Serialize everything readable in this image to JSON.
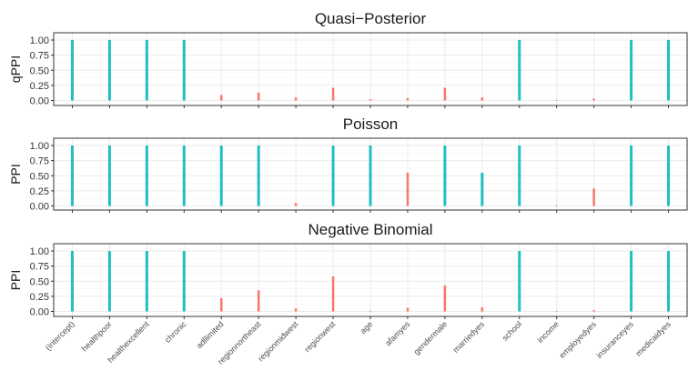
{
  "colors": {
    "included": "#1fbfc4",
    "excluded": "#f8766d",
    "grid": "#ebebeb",
    "frame": "#333333"
  },
  "chart_data": [
    {
      "type": "bar",
      "title": "Quasi−Posterior",
      "ylabel": "qPPI",
      "ylim": [
        0,
        1.08
      ],
      "yticks": [
        "0.00",
        "0.25",
        "0.50",
        "0.75",
        "1.00"
      ],
      "categories": [
        "(Intercept)",
        "healthpoor",
        "healthexcellent",
        "chronic",
        "adllimited",
        "regionnortheast",
        "regionmidwest",
        "regionwest",
        "age",
        "afamyes",
        "gendermale",
        "marriedyes",
        "school",
        "income",
        "employedyes",
        "insuranceyes",
        "medicaidyes"
      ],
      "values": [
        1.0,
        1.0,
        1.0,
        1.0,
        0.09,
        0.13,
        0.05,
        0.21,
        0.02,
        0.04,
        0.21,
        0.05,
        1.0,
        0.0,
        0.03,
        1.0,
        1.0
      ],
      "included": [
        true,
        true,
        true,
        true,
        false,
        false,
        false,
        false,
        false,
        false,
        false,
        false,
        true,
        false,
        false,
        true,
        true
      ]
    },
    {
      "type": "bar",
      "title": "Poisson",
      "ylabel": "PPI",
      "ylim": [
        0,
        1.08
      ],
      "yticks": [
        "0.00",
        "0.25",
        "0.50",
        "0.75",
        "1.00"
      ],
      "categories": [
        "(Intercept)",
        "healthpoor",
        "healthexcellent",
        "chronic",
        "adllimited",
        "regionnortheast",
        "regionmidwest",
        "regionwest",
        "age",
        "afamyes",
        "gendermale",
        "marriedyes",
        "school",
        "income",
        "employedyes",
        "insuranceyes",
        "medicaidyes"
      ],
      "values": [
        1.0,
        1.0,
        1.0,
        1.0,
        1.0,
        1.0,
        0.05,
        1.0,
        1.0,
        0.55,
        1.0,
        0.55,
        1.0,
        0.01,
        0.29,
        1.0,
        1.0
      ],
      "included": [
        true,
        true,
        true,
        true,
        true,
        true,
        false,
        true,
        true,
        false,
        true,
        true,
        true,
        false,
        false,
        true,
        true
      ]
    },
    {
      "type": "bar",
      "title": "Negative Binomial",
      "ylabel": "PPI",
      "ylim": [
        0,
        1.08
      ],
      "yticks": [
        "0.00",
        "0.25",
        "0.50",
        "0.75",
        "1.00"
      ],
      "categories": [
        "(Intercept)",
        "healthpoor",
        "healthexcellent",
        "chronic",
        "adllimited",
        "regionnortheast",
        "regionmidwest",
        "regionwest",
        "age",
        "afamyes",
        "gendermale",
        "marriedyes",
        "school",
        "income",
        "employedyes",
        "insuranceyes",
        "medicaidyes"
      ],
      "values": [
        1.0,
        1.0,
        1.0,
        1.0,
        0.22,
        0.35,
        0.05,
        0.58,
        0.01,
        0.06,
        0.43,
        0.07,
        1.0,
        0.0,
        0.02,
        1.0,
        1.0
      ],
      "included": [
        true,
        true,
        true,
        true,
        false,
        false,
        false,
        false,
        false,
        false,
        false,
        false,
        true,
        false,
        false,
        true,
        true
      ]
    }
  ]
}
